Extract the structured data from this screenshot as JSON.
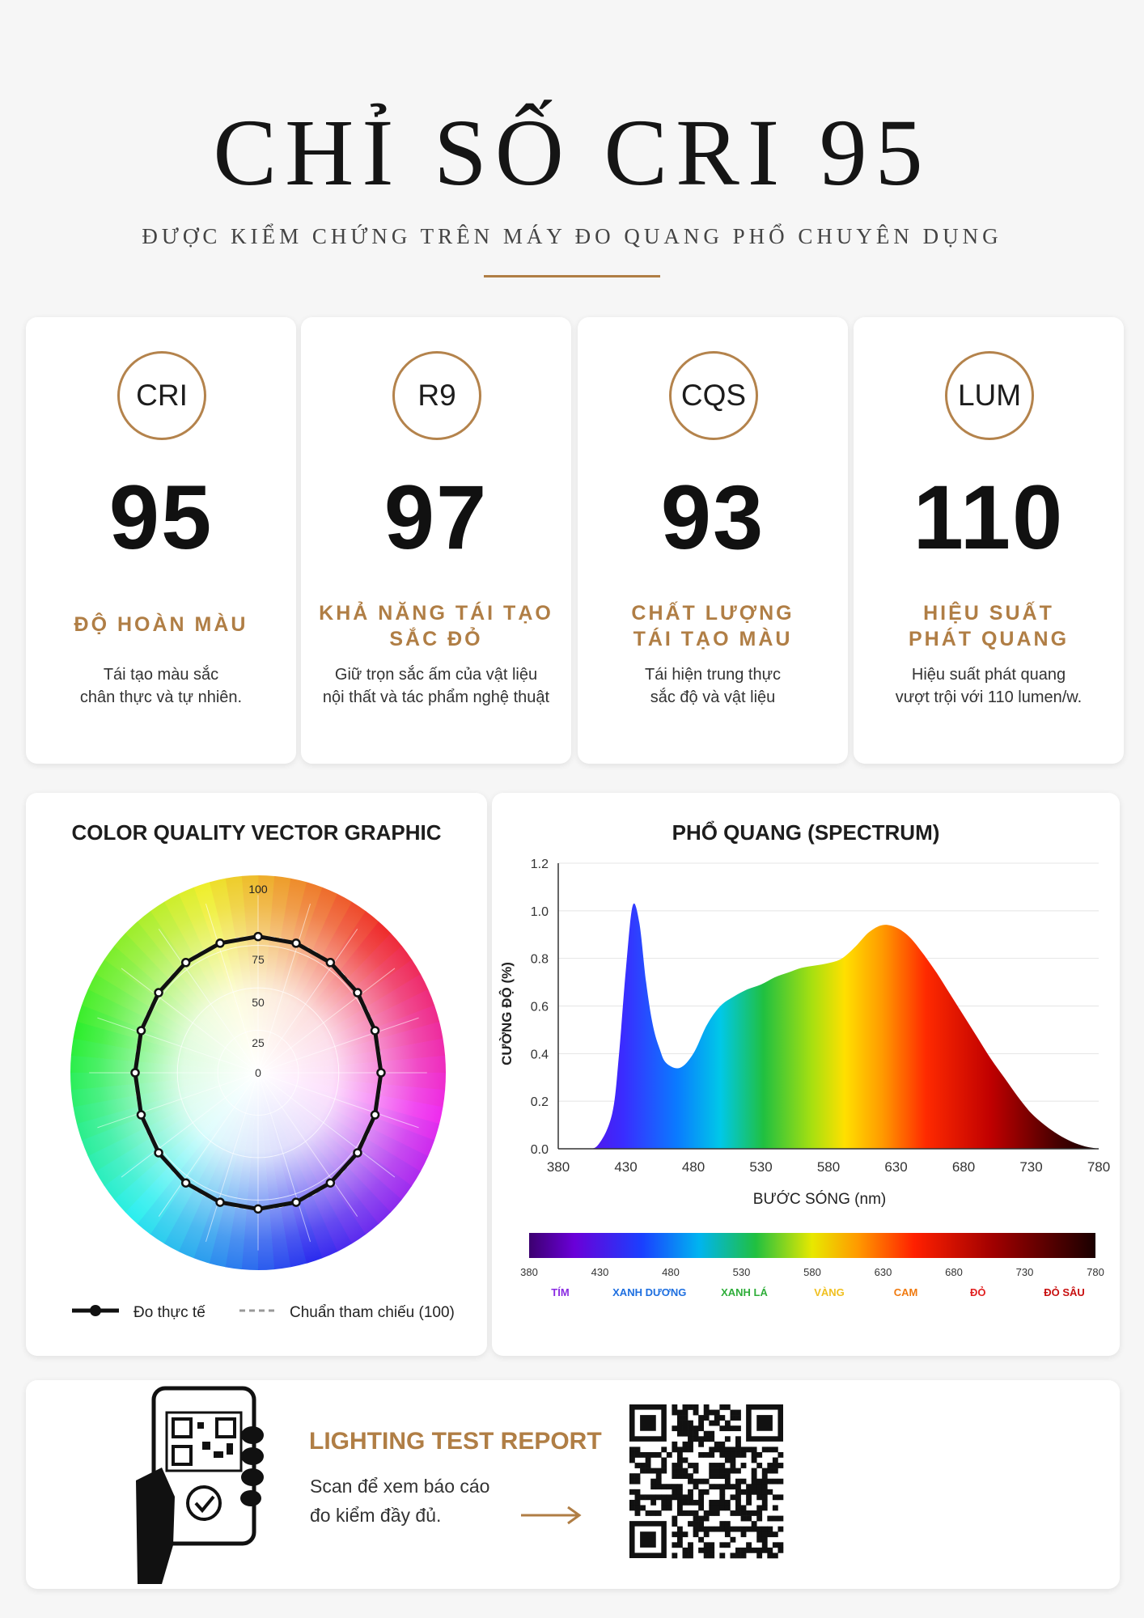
{
  "header": {
    "title": "CHỈ SỐ CRI 95",
    "subtitle": "ĐƯỢC KIỂM CHỨNG TRÊN MÁY ĐO QUANG PHỔ CHUYÊN DỤNG"
  },
  "metrics": [
    {
      "badge": "CRI",
      "value": "95",
      "label_line1": "ĐỘ HOÀN MÀU",
      "label_line2": "",
      "desc_line1": "Tái tạo màu sắc",
      "desc_line2": "chân thực và tự nhiên."
    },
    {
      "badge": "R9",
      "value": "97",
      "label_line1": "KHẢ NĂNG TÁI TẠO",
      "label_line2": "SẮC ĐỎ",
      "desc_line1": "Giữ trọn sắc ấm của vật liệu",
      "desc_line2": "nội thất và tác phẩm nghệ thuật"
    },
    {
      "badge": "CQS",
      "value": "93",
      "label_line1": "CHẤT LƯỢNG",
      "label_line2": "TÁI TẠO MÀU",
      "desc_line1": "Tái hiện trung thực",
      "desc_line2": "sắc độ và vật liệu"
    },
    {
      "badge": "LUM",
      "value": "110",
      "label_line1": "HIỆU SUẤT",
      "label_line2": "PHÁT QUANG",
      "desc_line1": "Hiệu suất phát quang",
      "desc_line2": "vượt trội với 110 lumen/w."
    }
  ],
  "cvg": {
    "title": "COLOR QUALITY VECTOR GRAPHIC",
    "scale_labels": [
      "100",
      "75",
      "50",
      "25",
      "0"
    ],
    "measured_points": 20,
    "legend_measured": "Đo thực tế",
    "legend_reference": "Chuẩn tham chiếu (100)"
  },
  "spectrum": {
    "title": "PHỔ QUANG (SPECTRUM)",
    "ylabel": "CƯỜNG ĐỘ (%)",
    "xlabel": "BƯỚC SÓNG (nm)",
    "yticks": [
      "1.2",
      "1.0",
      "0.8",
      "0.6",
      "0.4",
      "0.2",
      "0.0"
    ],
    "xticks": [
      "380",
      "430",
      "480",
      "530",
      "580",
      "630",
      "680",
      "730",
      "780"
    ],
    "bar_ticks": [
      "380",
      "430",
      "480",
      "530",
      "580",
      "630",
      "680",
      "730",
      "780"
    ],
    "bands": [
      {
        "name": "TÍM",
        "color": "#8a2be2"
      },
      {
        "name": "XANH DƯƠNG",
        "color": "#1e6fe0"
      },
      {
        "name": "XANH LÁ",
        "color": "#2fae3a"
      },
      {
        "name": "VÀNG",
        "color": "#f0c020"
      },
      {
        "name": "CAM",
        "color": "#f07a10"
      },
      {
        "name": "ĐỎ",
        "color": "#e02020"
      },
      {
        "name": "ĐỎ SÂU",
        "color": "#c81010"
      }
    ]
  },
  "chart_data": {
    "type": "area",
    "title": "PHỔ QUANG (SPECTRUM)",
    "xlabel": "BƯỚC SÓNG (nm)",
    "ylabel": "CƯỜNG ĐỘ (%)",
    "xlim": [
      380,
      780
    ],
    "ylim": [
      0,
      1.2
    ],
    "x": [
      380,
      400,
      410,
      420,
      425,
      430,
      435,
      440,
      445,
      450,
      455,
      460,
      470,
      480,
      490,
      500,
      510,
      520,
      530,
      540,
      550,
      560,
      570,
      580,
      590,
      600,
      610,
      620,
      630,
      640,
      650,
      660,
      670,
      680,
      690,
      700,
      710,
      720,
      730,
      740,
      750,
      760,
      770,
      780
    ],
    "y": [
      0.0,
      0.0,
      0.02,
      0.15,
      0.4,
      0.75,
      1.02,
      0.95,
      0.7,
      0.52,
      0.42,
      0.36,
      0.34,
      0.4,
      0.52,
      0.6,
      0.64,
      0.67,
      0.69,
      0.72,
      0.74,
      0.76,
      0.77,
      0.78,
      0.8,
      0.85,
      0.91,
      0.94,
      0.93,
      0.89,
      0.82,
      0.74,
      0.65,
      0.56,
      0.47,
      0.38,
      0.3,
      0.22,
      0.15,
      0.1,
      0.06,
      0.03,
      0.01,
      0.0
    ],
    "grid": true
  },
  "report": {
    "title": "LIGHTING TEST REPORT",
    "line1": "Scan để xem báo cáo",
    "line2": "đo kiểm đầy đủ."
  }
}
